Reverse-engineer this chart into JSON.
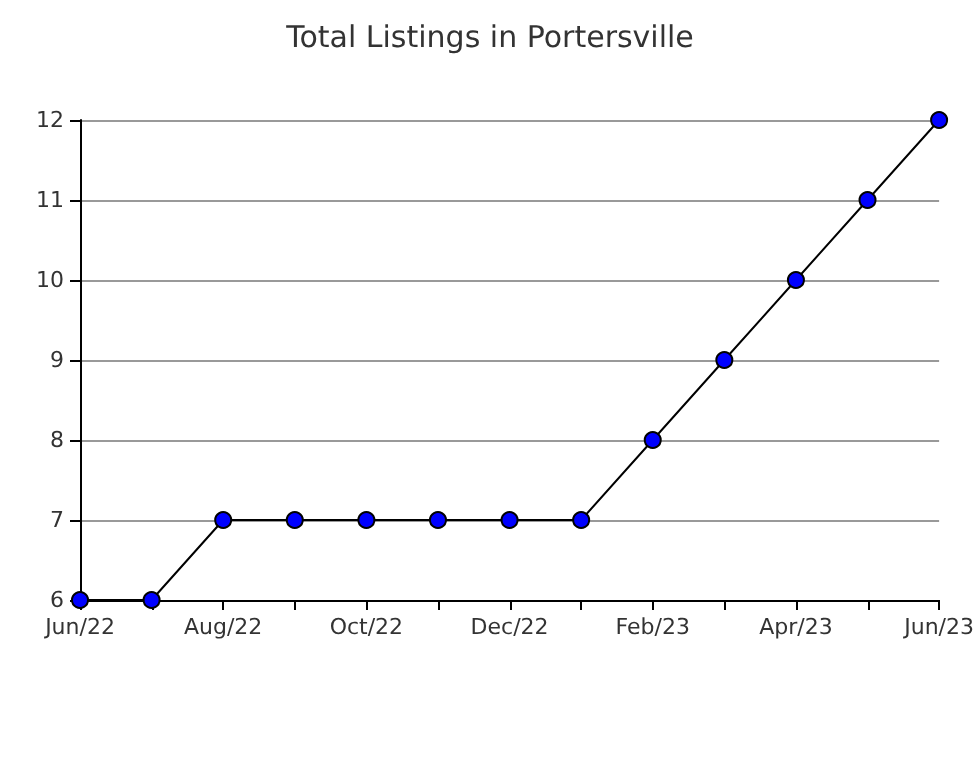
{
  "chart_data": {
    "type": "line",
    "title": "Total Listings in Portersville",
    "categories": [
      "Jun/22",
      null,
      "Aug/22",
      null,
      "Oct/22",
      null,
      "Dec/22",
      null,
      "Feb/23",
      null,
      "Apr/23",
      null,
      "Jun/23"
    ],
    "series": [
      {
        "color": "#0000ff",
        "values": [
          6,
          6,
          7,
          7,
          7,
          7,
          7,
          7,
          8,
          9,
          10,
          11,
          12
        ]
      }
    ],
    "ylim": [
      6,
      12
    ],
    "yticks": [
      6,
      7,
      8,
      9,
      10,
      11,
      12
    ],
    "grid": "y",
    "marker": "circle",
    "line_style": "solid"
  }
}
